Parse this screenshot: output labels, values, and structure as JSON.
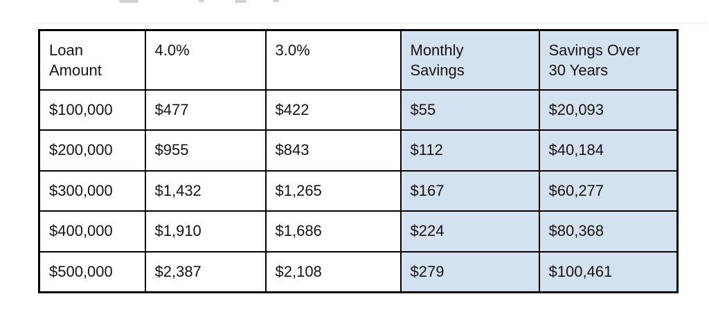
{
  "table": {
    "headers": [
      "Loan\nAmount",
      "4.0%",
      "3.0%",
      "Monthly\nSavings",
      "Savings Over\n30 Years"
    ],
    "highlight_columns": [
      3,
      4
    ],
    "highlight_color": "#d4e2f0",
    "border_color": "#000000",
    "rows": [
      [
        "$100,000",
        "$477",
        "$422",
        "$55",
        "$20,093"
      ],
      [
        "$200,000",
        "$955",
        "$843",
        "$112",
        "$40,184"
      ],
      [
        "$300,000",
        "$1,432",
        "$1,265",
        "$167",
        "$60,277"
      ],
      [
        "$400,000",
        "$1,910",
        "$1,686",
        "$224",
        "$80,368"
      ],
      [
        "$500,000",
        "$2,387",
        "$2,108",
        "$279",
        "$100,461"
      ]
    ]
  }
}
